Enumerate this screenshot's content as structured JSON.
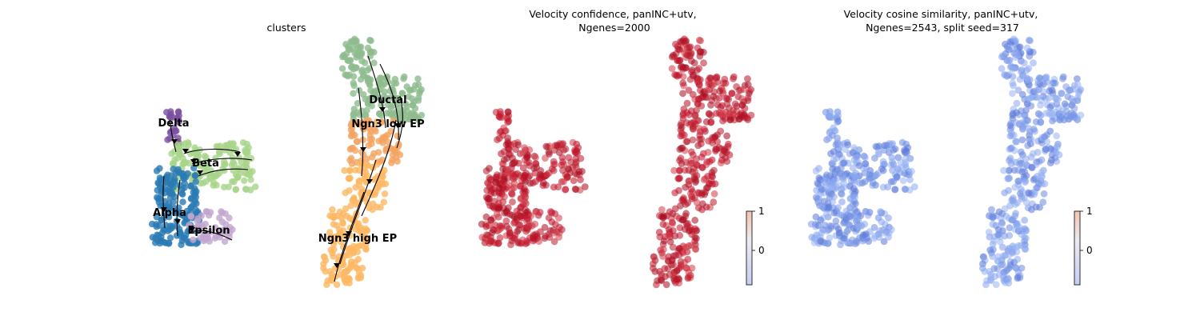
{
  "chart_data": [
    {
      "type": "scatter",
      "title": "clusters",
      "xlabel": "",
      "ylabel": "",
      "grid": false,
      "cluster_labels": [
        "Delta",
        "Beta",
        "Alpha",
        "Epsilon",
        "Ductal",
        "Ngn3 low EP",
        "Ngn3 high EP"
      ],
      "colors": {
        "Delta": "#7b4fa0",
        "Beta": "#a8d58a",
        "Alpha": "#2b7bb4",
        "Epsilon": "#c2a5cf",
        "Ductal": "#8fbc8f",
        "Ngn3 low EP": "#f4a460",
        "Ngn3 high EP": "#fdb863"
      }
    },
    {
      "type": "scatter",
      "title": "Velocity confidence, panINC+utv,\nNgenes=2000",
      "xlabel": "",
      "ylabel": "",
      "grid": false,
      "colorbar": {
        "ticks": [
          "1",
          "0"
        ],
        "cmap": "coolwarm"
      },
      "point_color": "#b80f24"
    },
    {
      "type": "scatter",
      "title": "Velocity cosine similarity, panINC+utv,\nNgenes=2543, split seed=317",
      "xlabel": "",
      "ylabel": "",
      "grid": false,
      "colorbar": {
        "ticks": [
          "1",
          "0"
        ],
        "cmap": "coolwarm"
      },
      "point_color": "#6b8be0"
    }
  ]
}
